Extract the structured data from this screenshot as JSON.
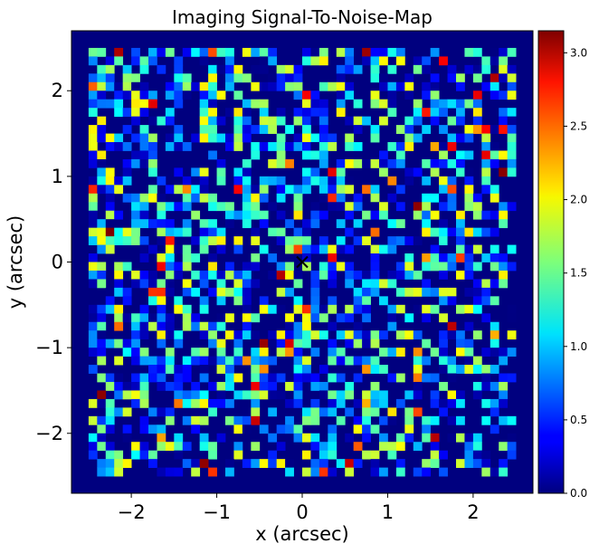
{
  "chart_data": {
    "type": "heatmap",
    "title": "Imaging Signal-To-Noise-Map",
    "xlabel": "x (arcsec)",
    "ylabel": "y (arcsec)",
    "xlim": [
      -2.7,
      2.7
    ],
    "ylim": [
      -2.7,
      2.7
    ],
    "xticks": [
      -2,
      -1,
      0,
      1,
      2
    ],
    "yticks": [
      -2,
      -1,
      0,
      1,
      2
    ],
    "xtick_labels": [
      "−2",
      "−1",
      "0",
      "1",
      "2"
    ],
    "ytick_labels": [
      "−2",
      "−1",
      "0",
      "1",
      "2"
    ],
    "grid": false,
    "colormap": "jet",
    "colorbar": {
      "range": [
        0.0,
        3.15
      ],
      "ticks": [
        0.0,
        0.5,
        1.0,
        1.5,
        2.0,
        2.5,
        3.0
      ],
      "tick_labels": [
        "0.0",
        "0.5",
        "1.0",
        "1.5",
        "2.0",
        "2.5",
        "3.0"
      ]
    },
    "pixel_scale": 0.1,
    "grid_shape": [
      54,
      54
    ],
    "data_extent": [
      -2.5,
      2.5,
      -2.5,
      2.5
    ],
    "nonzero_fraction": 0.55,
    "center_marker": {
      "symbol": "x",
      "x": 0.0,
      "y": 0.0,
      "color": "#000000"
    }
  }
}
